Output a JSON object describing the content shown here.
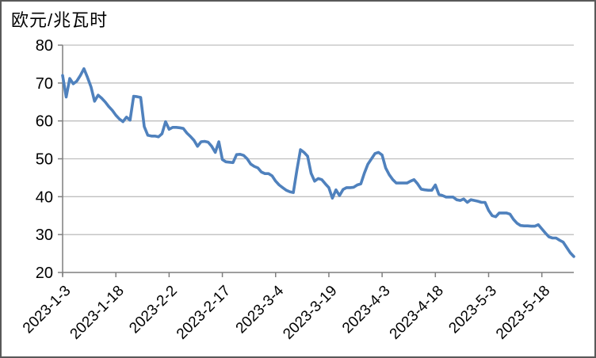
{
  "chart_data": {
    "type": "line",
    "title": "欧元/兆瓦时",
    "xlabel": "",
    "ylabel": "欧元/兆瓦时",
    "ylim": [
      20,
      80
    ],
    "y_ticks": [
      20,
      30,
      40,
      50,
      60,
      70,
      80
    ],
    "grid": "horizontal",
    "legend": "none",
    "x_tick_interval": 15,
    "x_tick_labels": [
      "2023-1-3",
      "2023-1-18",
      "2023-2-2",
      "2023-2-17",
      "2023-3-4",
      "2023-3-19",
      "2023-4-3",
      "2023-4-18",
      "2023-5-3",
      "2023-5-18"
    ],
    "x": [
      "2023-1-3",
      "2023-1-4",
      "2023-1-5",
      "2023-1-6",
      "2023-1-7",
      "2023-1-8",
      "2023-1-9",
      "2023-1-10",
      "2023-1-11",
      "2023-1-12",
      "2023-1-13",
      "2023-1-14",
      "2023-1-15",
      "2023-1-16",
      "2023-1-17",
      "2023-1-18",
      "2023-1-19",
      "2023-1-20",
      "2023-1-21",
      "2023-1-22",
      "2023-1-23",
      "2023-1-24",
      "2023-1-25",
      "2023-1-26",
      "2023-1-27",
      "2023-1-28",
      "2023-1-29",
      "2023-1-30",
      "2023-1-31",
      "2023-2-1",
      "2023-2-2",
      "2023-2-3",
      "2023-2-4",
      "2023-2-5",
      "2023-2-6",
      "2023-2-7",
      "2023-2-8",
      "2023-2-9",
      "2023-2-10",
      "2023-2-11",
      "2023-2-12",
      "2023-2-13",
      "2023-2-14",
      "2023-2-15",
      "2023-2-16",
      "2023-2-17",
      "2023-2-18",
      "2023-2-19",
      "2023-2-20",
      "2023-2-21",
      "2023-2-22",
      "2023-2-23",
      "2023-2-24",
      "2023-2-25",
      "2023-2-26",
      "2023-2-27",
      "2023-2-28",
      "2023-3-1",
      "2023-3-2",
      "2023-3-3",
      "2023-3-4",
      "2023-3-5",
      "2023-3-6",
      "2023-3-7",
      "2023-3-8",
      "2023-3-9",
      "2023-3-10",
      "2023-3-11",
      "2023-3-12",
      "2023-3-13",
      "2023-3-14",
      "2023-3-15",
      "2023-3-16",
      "2023-3-17",
      "2023-3-18",
      "2023-3-19",
      "2023-3-20",
      "2023-3-21",
      "2023-3-22",
      "2023-3-23",
      "2023-3-24",
      "2023-3-25",
      "2023-3-26",
      "2023-3-27",
      "2023-3-28",
      "2023-3-29",
      "2023-3-30",
      "2023-3-31",
      "2023-4-1",
      "2023-4-2",
      "2023-4-3",
      "2023-4-4",
      "2023-4-5",
      "2023-4-6",
      "2023-4-7",
      "2023-4-8",
      "2023-4-9",
      "2023-4-10",
      "2023-4-11",
      "2023-4-12",
      "2023-4-13",
      "2023-4-14",
      "2023-4-15",
      "2023-4-16",
      "2023-4-17",
      "2023-4-18",
      "2023-4-19",
      "2023-4-20",
      "2023-4-21",
      "2023-4-22",
      "2023-4-23",
      "2023-4-24",
      "2023-4-25",
      "2023-4-26",
      "2023-4-27",
      "2023-4-28",
      "2023-4-29",
      "2023-4-30",
      "2023-5-1",
      "2023-5-2",
      "2023-5-3",
      "2023-5-4",
      "2023-5-5",
      "2023-5-6",
      "2023-5-7",
      "2023-5-8",
      "2023-5-9",
      "2023-5-10",
      "2023-5-11",
      "2023-5-12",
      "2023-5-13",
      "2023-5-14",
      "2023-5-15",
      "2023-5-16",
      "2023-5-17",
      "2023-5-18",
      "2023-5-19",
      "2023-5-20",
      "2023-5-21",
      "2023-5-22",
      "2023-5-23",
      "2023-5-24",
      "2023-5-25",
      "2023-5-26",
      "2023-5-27"
    ],
    "values": [
      72.0,
      66.3,
      71.2,
      69.8,
      70.5,
      72.0,
      73.8,
      71.5,
      69.0,
      65.2,
      66.8,
      66.0,
      65.0,
      63.8,
      62.8,
      61.5,
      60.5,
      59.8,
      61.0,
      60.2,
      66.5,
      66.4,
      66.2,
      58.5,
      56.2,
      56.0,
      56.0,
      55.8,
      56.6,
      59.8,
      57.8,
      58.3,
      58.3,
      58.2,
      58.0,
      56.8,
      55.9,
      54.9,
      53.3,
      54.5,
      54.6,
      54.4,
      53.3,
      51.7,
      54.5,
      49.8,
      49.2,
      49.1,
      49.0,
      51.1,
      51.2,
      50.9,
      50.0,
      48.6,
      48.0,
      47.6,
      46.5,
      46.1,
      46.1,
      45.5,
      44.1,
      43.1,
      42.4,
      41.7,
      41.3,
      41.1,
      47.0,
      52.4,
      51.7,
      50.7,
      46.2,
      44.1,
      44.8,
      44.5,
      43.4,
      42.4,
      39.6,
      41.8,
      40.3,
      41.9,
      42.4,
      42.4,
      42.5,
      43.1,
      43.4,
      46.2,
      48.6,
      50.0,
      51.4,
      51.7,
      51.0,
      47.6,
      45.8,
      44.5,
      43.6,
      43.6,
      43.6,
      43.6,
      44.1,
      44.5,
      43.4,
      42.0,
      41.8,
      41.7,
      41.7,
      43.1,
      40.6,
      40.3,
      39.9,
      39.9,
      39.9,
      39.2,
      39.0,
      39.4,
      38.5,
      39.2,
      39.0,
      38.8,
      38.5,
      38.5,
      36.4,
      35.0,
      34.7,
      35.7,
      35.7,
      35.7,
      35.4,
      34.0,
      33.0,
      32.4,
      32.3,
      32.3,
      32.2,
      32.2,
      32.6,
      31.5,
      30.4,
      29.4,
      29.1,
      29.1,
      28.5,
      28.0,
      26.6,
      25.2,
      24.2
    ],
    "line_color": "#4F81BD",
    "gridline_color": "#BFBFBF",
    "axis_color": "#7F7F7F",
    "text_color": "#000000",
    "border_color": "#595959"
  }
}
